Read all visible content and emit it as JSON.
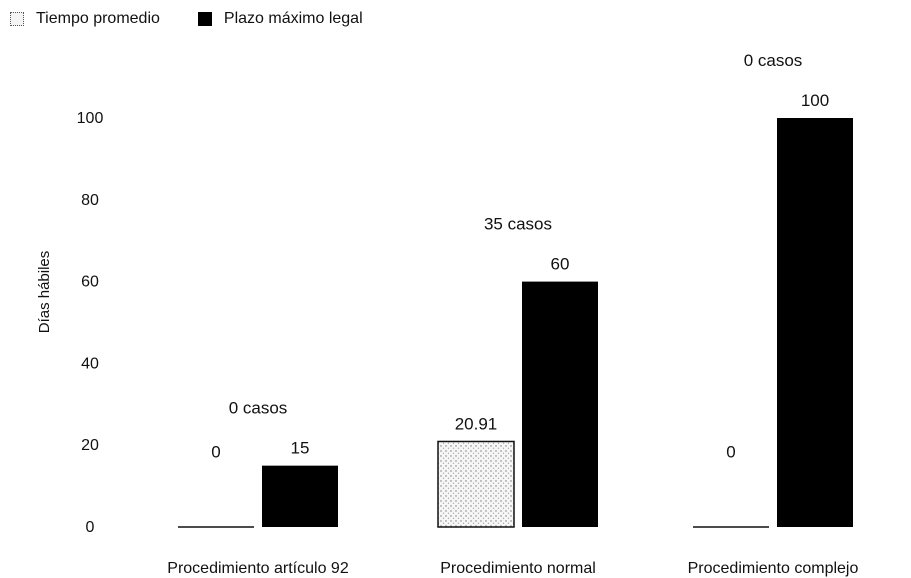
{
  "chart_data": {
    "type": "bar",
    "categories": [
      "Procedimiento artículo 92",
      "Procedimiento normal",
      "Procedimiento complejo"
    ],
    "series": [
      {
        "name": "Tiempo promedio",
        "values": [
          0,
          20.91,
          0
        ],
        "labels": [
          "0",
          "20.91",
          "0"
        ],
        "pattern": "dotted"
      },
      {
        "name": "Plazo máximo legal",
        "values": [
          15,
          60,
          100
        ],
        "labels": [
          "15",
          "60",
          "100"
        ],
        "color": "#000000"
      }
    ],
    "cases": [
      "0 casos",
      "35 casos",
      "0 casos"
    ],
    "ylabel": "Días hábiles",
    "ylim": [
      0,
      100
    ],
    "yticks": [
      "0",
      "20",
      "40",
      "60",
      "80",
      "100"
    ],
    "grid": false,
    "legend_position": "top-left"
  }
}
